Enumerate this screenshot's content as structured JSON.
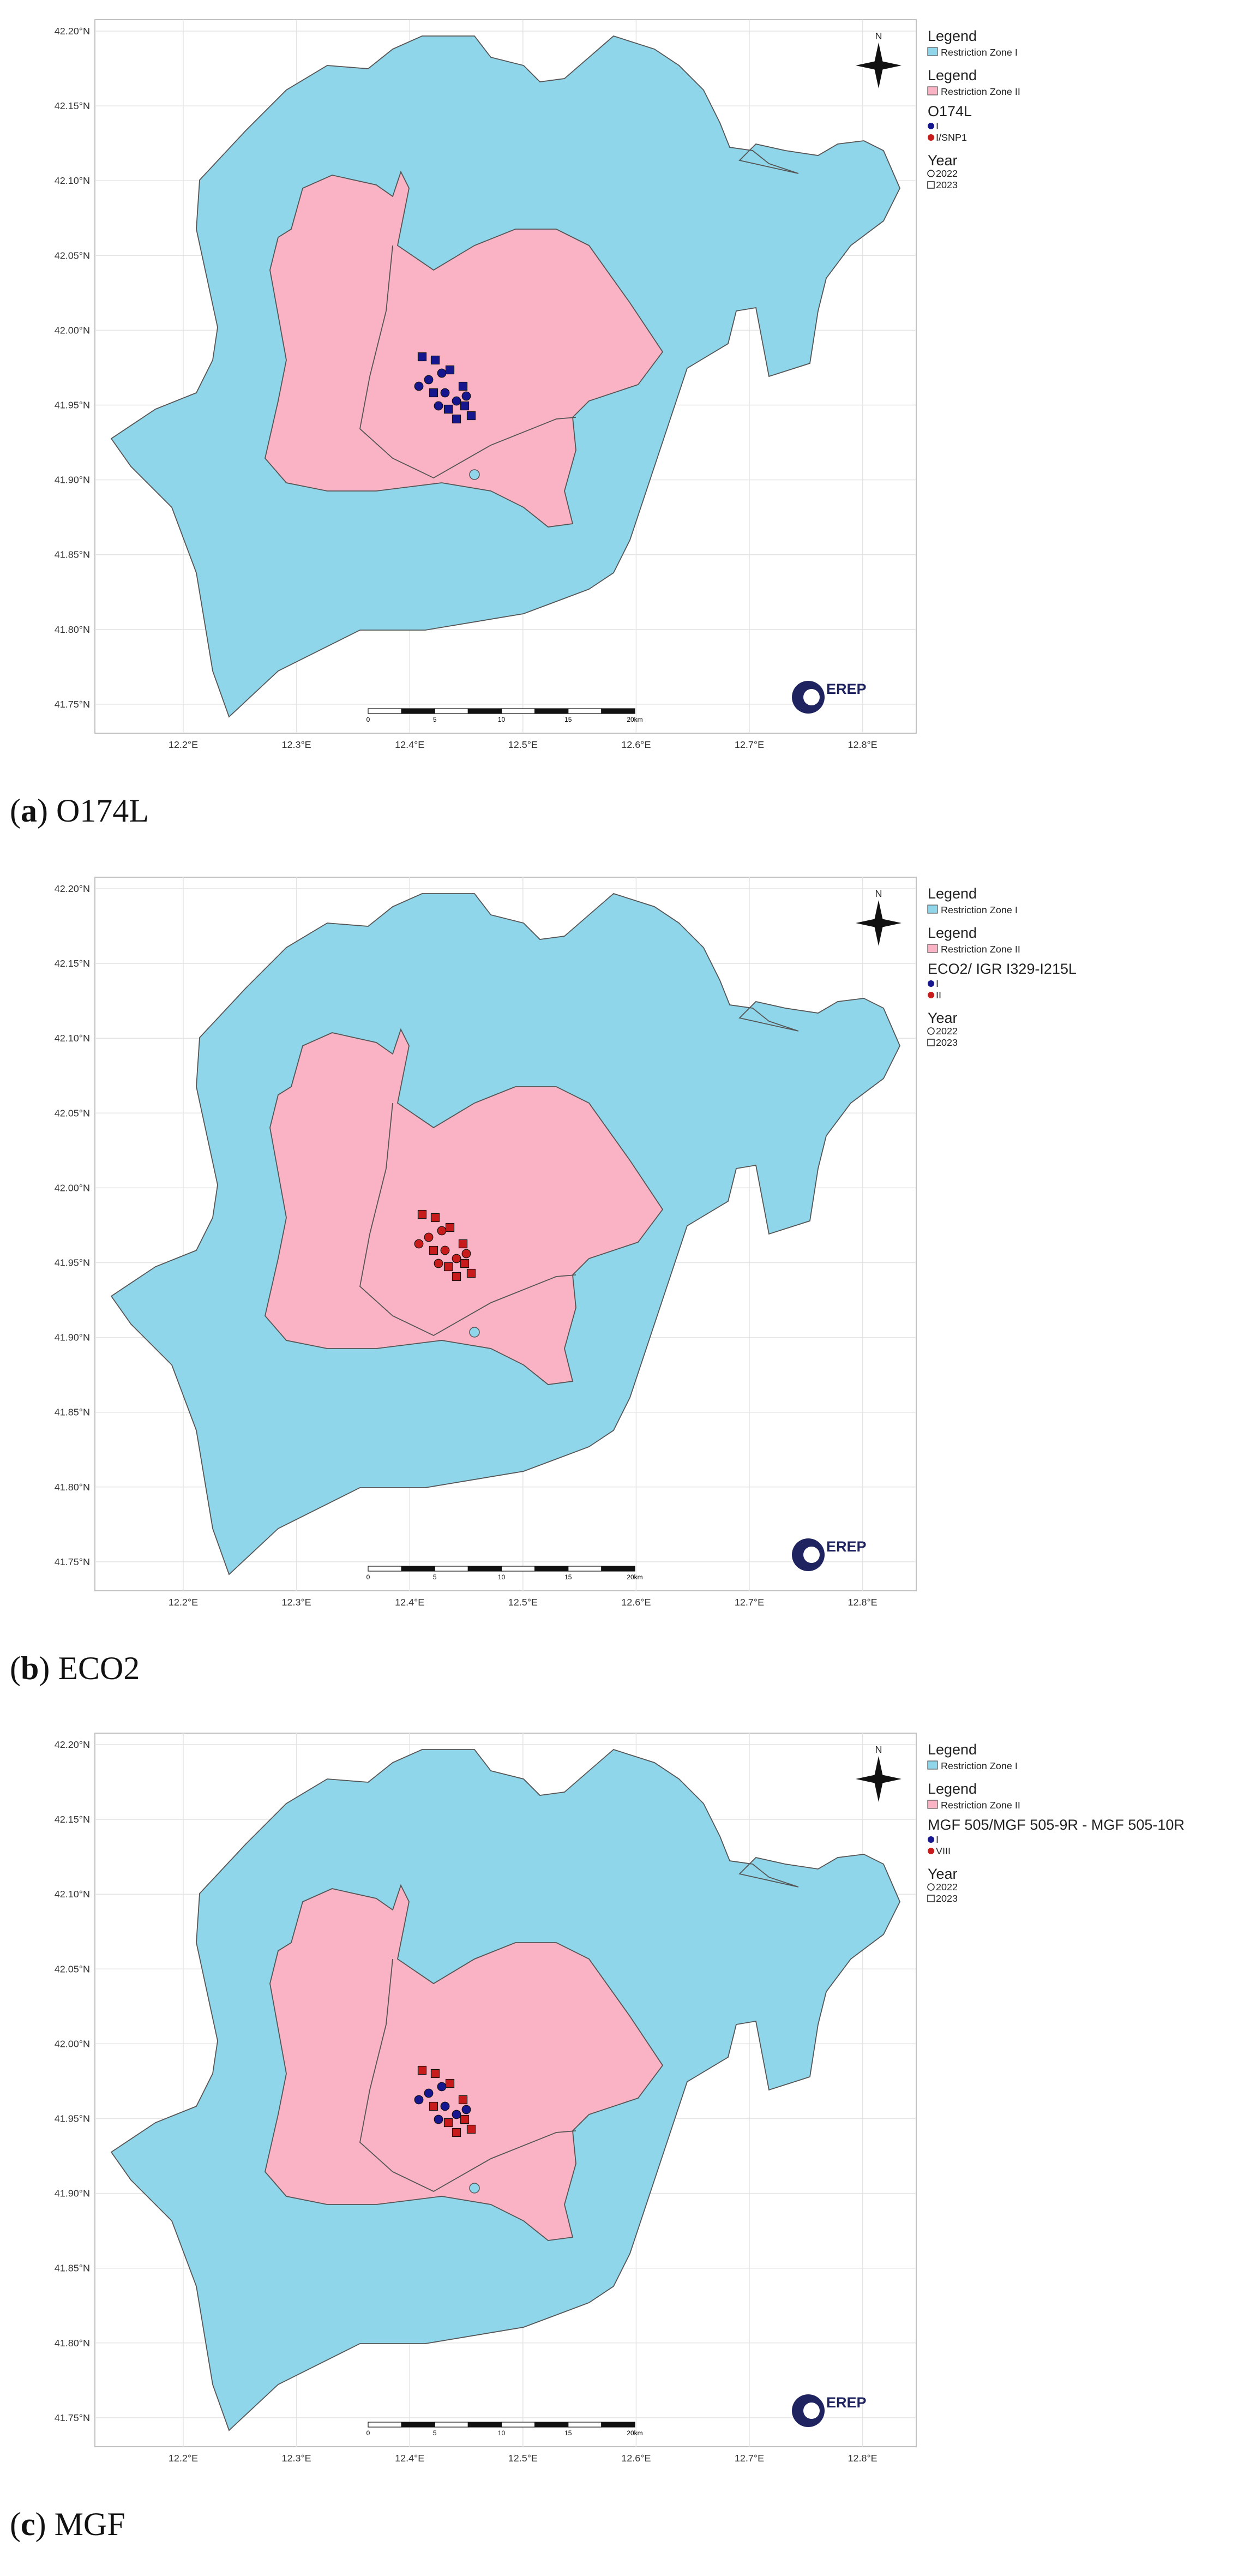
{
  "panels": [
    {
      "caption": [
        "(",
        "a",
        ") O174L"
      ],
      "y_labels": [
        "42.20°N",
        "42.15°N",
        "42.10°N",
        "42.05°N",
        "42.00°N",
        "41.95°N",
        "41.90°N",
        "41.85°N",
        "41.80°N",
        "41.75°N"
      ],
      "x_labels": [
        "12.2°E",
        "12.3°E",
        "12.4°E",
        "12.5°E",
        "12.6°E",
        "12.7°E",
        "12.8°E"
      ],
      "legend": {
        "title_1": "Legend",
        "zone_1": "Restriction Zone I",
        "title_2": "Legend",
        "zone_2": "Restriction Zone II",
        "group_title": "O174L",
        "groups": [
          "I",
          "I/SNP1"
        ],
        "year_title": "Year",
        "years": [
          "2022",
          "2023"
        ]
      },
      "group_colors": [
        "#16168f",
        "#c81c1c"
      ],
      "zone_colors": [
        "#8fd6ea",
        "#f9b3c4"
      ],
      "scale_labels": [
        "0",
        "5",
        "10",
        "15",
        "20km"
      ],
      "north": "N",
      "logo": "EREP"
    },
    {
      "caption": [
        "(",
        "b",
        ") ECO2"
      ],
      "y_labels": [
        "42.20°N",
        "42.15°N",
        "42.10°N",
        "42.05°N",
        "42.00°N",
        "41.95°N",
        "41.90°N",
        "41.85°N",
        "41.80°N",
        "41.75°N"
      ],
      "x_labels": [
        "12.2°E",
        "12.3°E",
        "12.4°E",
        "12.5°E",
        "12.6°E",
        "12.7°E",
        "12.8°E"
      ],
      "legend": {
        "title_1": "Legend",
        "zone_1": "Restriction Zone I",
        "title_2": "Legend",
        "zone_2": "Restriction Zone II",
        "group_title": "ECO2/ IGR I329-I215L",
        "groups": [
          "I",
          "II"
        ],
        "year_title": "Year",
        "years": [
          "2022",
          "2023"
        ]
      },
      "group_colors": [
        "#16168f",
        "#c81c1c"
      ],
      "zone_colors": [
        "#8fd6ea",
        "#f9b3c4"
      ],
      "scale_labels": [
        "0",
        "5",
        "10",
        "15",
        "20km"
      ],
      "north": "N",
      "logo": "EREP"
    },
    {
      "caption": [
        "(",
        "c",
        ") MGF"
      ],
      "y_labels": [
        "42.20°N",
        "42.15°N",
        "42.10°N",
        "42.05°N",
        "42.00°N",
        "41.95°N",
        "41.90°N",
        "41.85°N",
        "41.80°N",
        "41.75°N"
      ],
      "x_labels": [
        "12.2°E",
        "12.3°E",
        "12.4°E",
        "12.5°E",
        "12.6°E",
        "12.7°E",
        "12.8°E"
      ],
      "legend": {
        "title_1": "Legend",
        "zone_1": "Restriction Zone I",
        "title_2": "Legend",
        "zone_2": "Restriction Zone II",
        "group_title": "MGF 505/MGF 505-9R - MGF 505-10R",
        "groups": [
          "I",
          "VIII"
        ],
        "year_title": "Year",
        "years": [
          "2022",
          "2023"
        ]
      },
      "group_colors": [
        "#16168f",
        "#c81c1c"
      ],
      "zone_colors": [
        "#8fd6ea",
        "#f9b3c4"
      ],
      "scale_labels": [
        "0",
        "5",
        "10",
        "15",
        "20km"
      ],
      "north": "N",
      "logo": "EREP"
    }
  ]
}
